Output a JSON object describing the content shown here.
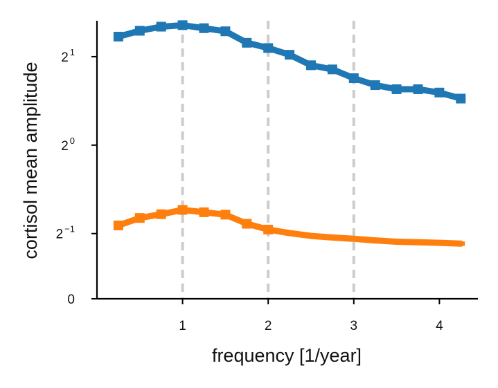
{
  "chart_data": {
    "type": "line",
    "title": "",
    "xlabel": "frequency [1/year]",
    "ylabel": "cortisol mean amplitude",
    "xlim": [
      0.0,
      4.45
    ],
    "ylim": [
      0.3,
      2.65
    ],
    "yscale": "log2",
    "xticks": [
      {
        "value": 1,
        "label": "1"
      },
      {
        "value": 2,
        "label": "2"
      },
      {
        "value": 3,
        "label": "3"
      },
      {
        "value": 4,
        "label": "4"
      }
    ],
    "yticks": [
      {
        "value": 2,
        "base": "2",
        "exp": "1"
      },
      {
        "value": 1,
        "base": "2",
        "exp": "0"
      },
      {
        "value": 0.5,
        "base": "2",
        "exp": "−1"
      }
    ],
    "y_zero_label": "0",
    "vlines": [
      1,
      2,
      3
    ],
    "grid": false,
    "legend": "none",
    "x": [
      0.25,
      0.5,
      0.75,
      1.0,
      1.25,
      1.5,
      1.75,
      2.0,
      2.25,
      2.5,
      2.75,
      3.0,
      3.25,
      3.5,
      3.75,
      4.0,
      4.25
    ],
    "series": [
      {
        "color": "#1f77b4",
        "markers": true,
        "values": [
          2.34,
          2.45,
          2.53,
          2.56,
          2.5,
          2.44,
          2.23,
          2.14,
          2.03,
          1.87,
          1.81,
          1.69,
          1.6,
          1.55,
          1.55,
          1.51,
          1.44
        ],
        "errors": [
          0.05,
          0.05,
          0.05,
          0.05,
          0.05,
          0.05,
          0.05,
          0.05,
          0.05,
          0.04,
          0.04,
          0.04,
          0.04,
          0.04,
          0.04,
          0.04,
          0.04
        ]
      },
      {
        "color": "#ff7f0e",
        "markers": true,
        "values": [
          0.533,
          0.565,
          0.582,
          0.602,
          0.591,
          0.58,
          0.54,
          0.516,
          0.502,
          0.491,
          0.485,
          0.48,
          0.474,
          0.469,
          0.467,
          0.465,
          0.462
        ],
        "errors": [
          0.012,
          0.012,
          0.012,
          0.012,
          0.012,
          0.012,
          0.012,
          0.008,
          0.006,
          0.004,
          0.004,
          0.004,
          0.004,
          0.004,
          0.004,
          0.004,
          0.004
        ]
      }
    ]
  }
}
